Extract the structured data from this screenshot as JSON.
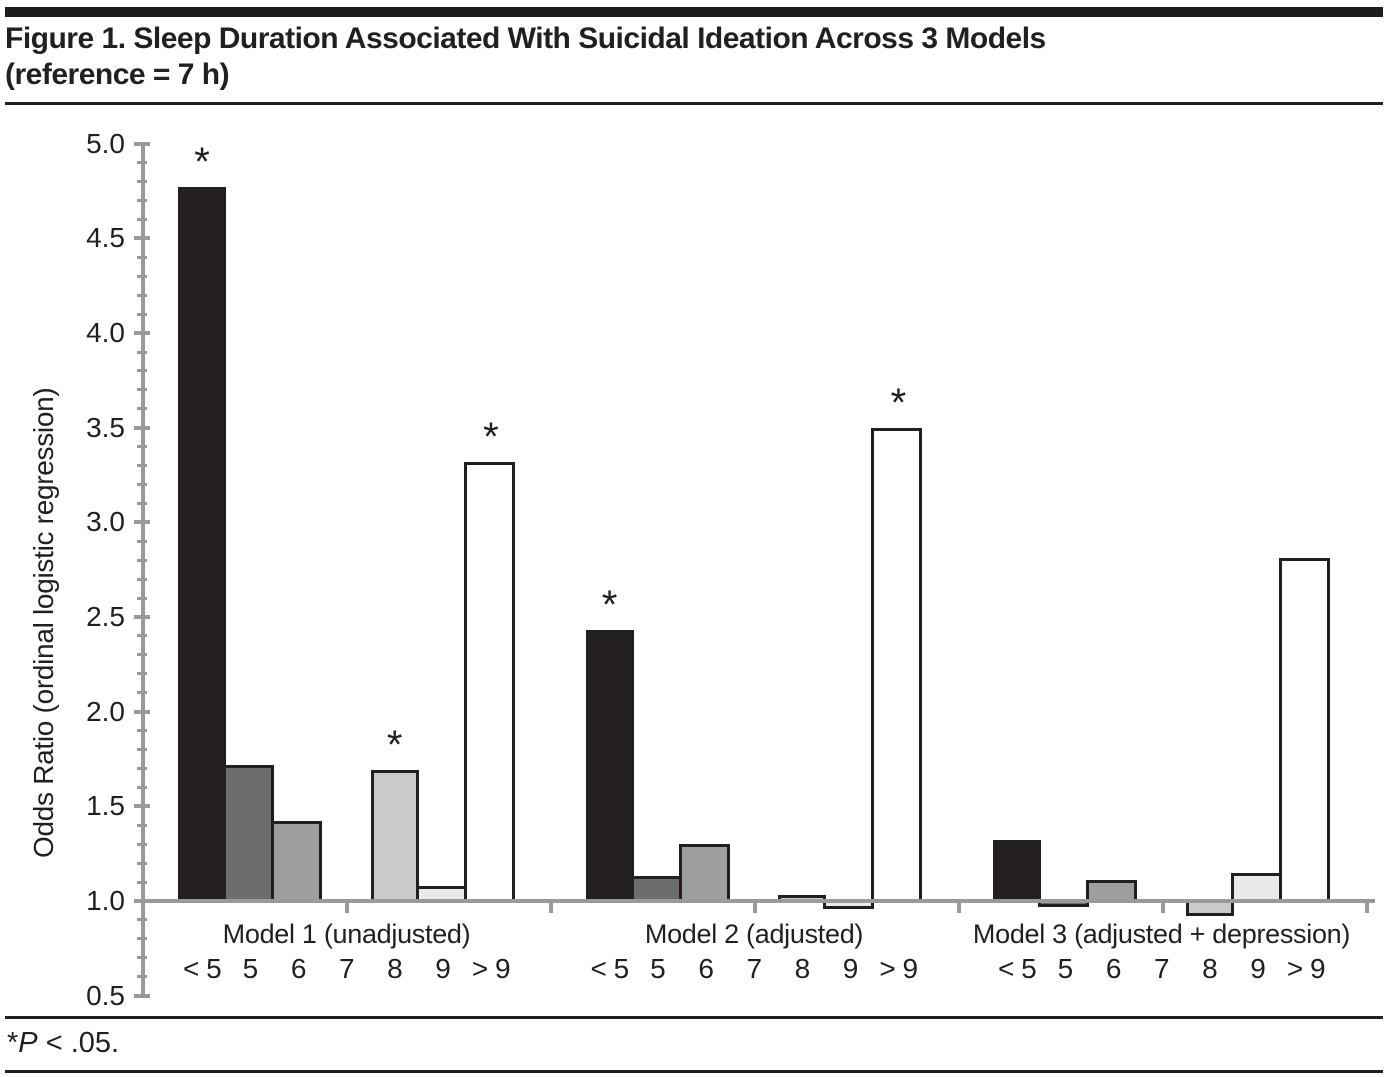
{
  "header": {
    "title_line1": "Figure 1. Sleep Duration Associated With Suicidal Ideation Across 3 Models",
    "title_line2": "(reference = 7 h)"
  },
  "footnote": {
    "asterisk": "*",
    "p_symbol": "P",
    "condition": " < .05."
  },
  "chart_data": {
    "type": "bar",
    "title": "Figure 1. Sleep Duration Associated With Suicidal Ideation Across 3 Models (reference = 7 h)",
    "ylabel": "Odds Ratio (ordinal logistic regression)",
    "xlabel": "",
    "ylim": [
      0.5,
      5.0
    ],
    "baseline": 1.0,
    "y_major_tick_step": 0.5,
    "y_minor_tick_step": 0.1,
    "y_major_tick_labels": [
      "0.5",
      "1.0",
      "1.5",
      "2.0",
      "2.5",
      "3.0",
      "3.5",
      "4.0",
      "4.5",
      "5.0"
    ],
    "grid": false,
    "legend": false,
    "categories": [
      "< 5",
      "5",
      "6",
      "7",
      "8",
      "9",
      "> 9"
    ],
    "reference_category": "7",
    "significance_marker": "*",
    "groups": [
      {
        "label": "Model 1 (unadjusted)",
        "values": [
          4.77,
          1.72,
          1.42,
          null,
          1.69,
          1.08,
          3.32
        ],
        "significant": [
          true,
          false,
          false,
          false,
          true,
          false,
          true
        ]
      },
      {
        "label": "Model 2 (adjusted)",
        "values": [
          2.43,
          1.13,
          1.3,
          null,
          1.03,
          0.96,
          3.5
        ],
        "significant": [
          true,
          false,
          false,
          false,
          false,
          false,
          true
        ]
      },
      {
        "label": "Model 3 (adjusted + depression)",
        "values": [
          1.32,
          0.97,
          1.11,
          null,
          0.92,
          1.15,
          2.81
        ],
        "significant": [
          false,
          false,
          false,
          false,
          false,
          false,
          false
        ]
      }
    ],
    "bar_colors": [
      "#231f20",
      "#6c6d6f",
      "#9c9ea0",
      null,
      "#c9cacb",
      "#e8e9ea",
      "#ffffff"
    ],
    "bar_border_color": "#231f20",
    "axis_color": "#9a9a9a",
    "text_color": "#231f20"
  }
}
